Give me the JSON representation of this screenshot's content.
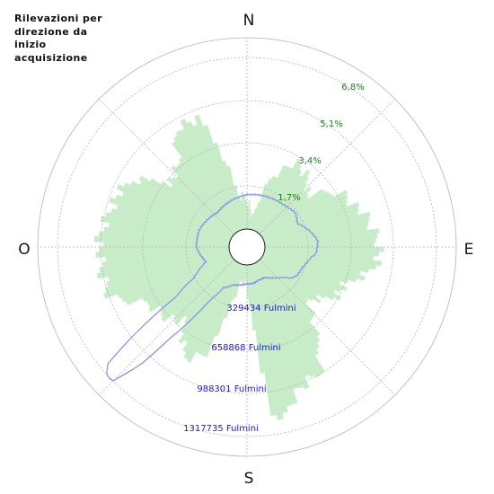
{
  "chart_data": {
    "type": "polar-area",
    "title": "Rilevazioni per\ndirezione da\ninizio\nacquisizione",
    "directions": [
      "N",
      "E",
      "S",
      "O"
    ],
    "radial_percent_labels": [
      "1,7%",
      "3,4%",
      "5,1%",
      "6,8%"
    ],
    "radial_percent_values": [
      1.7,
      3.4,
      5.1,
      6.8
    ],
    "radial_count_labels": [
      "329434 Fulmini",
      "658868 Fulmini",
      "988301 Fulmini",
      "1317735 Fulmini"
    ],
    "radial_count_values": [
      329434,
      658868,
      988301,
      1317735
    ],
    "angle_step_deg": 2,
    "percent_series_profile": [
      [
        0,
        0.19
      ],
      [
        10,
        0.05
      ],
      [
        20,
        0.34
      ],
      [
        30,
        0.46
      ],
      [
        40,
        0.44
      ],
      [
        50,
        0.36
      ],
      [
        60,
        0.53
      ],
      [
        70,
        0.58
      ],
      [
        80,
        0.63
      ],
      [
        90,
        0.68
      ],
      [
        100,
        0.64
      ],
      [
        110,
        0.52
      ],
      [
        120,
        0.48
      ],
      [
        130,
        0.37
      ],
      [
        140,
        0.5
      ],
      [
        150,
        0.75
      ],
      [
        160,
        0.78
      ],
      [
        165,
        0.84
      ],
      [
        170,
        0.98
      ],
      [
        175,
        0.4
      ],
      [
        180,
        0.12
      ],
      [
        185,
        0.09
      ],
      [
        190,
        0.11
      ],
      [
        195,
        0.21
      ],
      [
        200,
        0.55
      ],
      [
        205,
        0.6
      ],
      [
        210,
        0.63
      ],
      [
        220,
        0.47
      ],
      [
        230,
        0.52
      ],
      [
        240,
        0.56
      ],
      [
        250,
        0.74
      ],
      [
        260,
        0.76
      ],
      [
        270,
        0.76
      ],
      [
        280,
        0.74
      ],
      [
        290,
        0.72
      ],
      [
        300,
        0.67
      ],
      [
        310,
        0.48
      ],
      [
        320,
        0.51
      ],
      [
        330,
        0.72
      ],
      [
        340,
        0.68
      ],
      [
        350,
        0.21
      ],
      [
        360,
        0.19
      ]
    ],
    "count_series_profile": [
      [
        0,
        0.2
      ],
      [
        20,
        0.21
      ],
      [
        40,
        0.22
      ],
      [
        55,
        0.24
      ],
      [
        65,
        0.22
      ],
      [
        75,
        0.27
      ],
      [
        85,
        0.31
      ],
      [
        95,
        0.3
      ],
      [
        100,
        0.27
      ],
      [
        110,
        0.24
      ],
      [
        120,
        0.23
      ],
      [
        125,
        0.21
      ],
      [
        130,
        0.17
      ],
      [
        140,
        0.13
      ],
      [
        150,
        0.1
      ],
      [
        160,
        0.1
      ],
      [
        170,
        0.11
      ],
      [
        180,
        0.11
      ],
      [
        190,
        0.12
      ],
      [
        200,
        0.13
      ],
      [
        210,
        0.17
      ],
      [
        215,
        0.28
      ],
      [
        220,
        0.58
      ],
      [
        222,
        0.8
      ],
      [
        225,
        1.0
      ],
      [
        228,
        1.0
      ],
      [
        230,
        0.95
      ],
      [
        232,
        0.75
      ],
      [
        235,
        0.4
      ],
      [
        240,
        0.25
      ],
      [
        250,
        0.15
      ],
      [
        260,
        0.17
      ],
      [
        270,
        0.19
      ],
      [
        290,
        0.19
      ],
      [
        300,
        0.18
      ],
      [
        320,
        0.16
      ],
      [
        340,
        0.18
      ],
      [
        360,
        0.2
      ]
    ],
    "series_colors": {
      "percent": "#c8ecc8",
      "count": "#8a8af0"
    }
  }
}
